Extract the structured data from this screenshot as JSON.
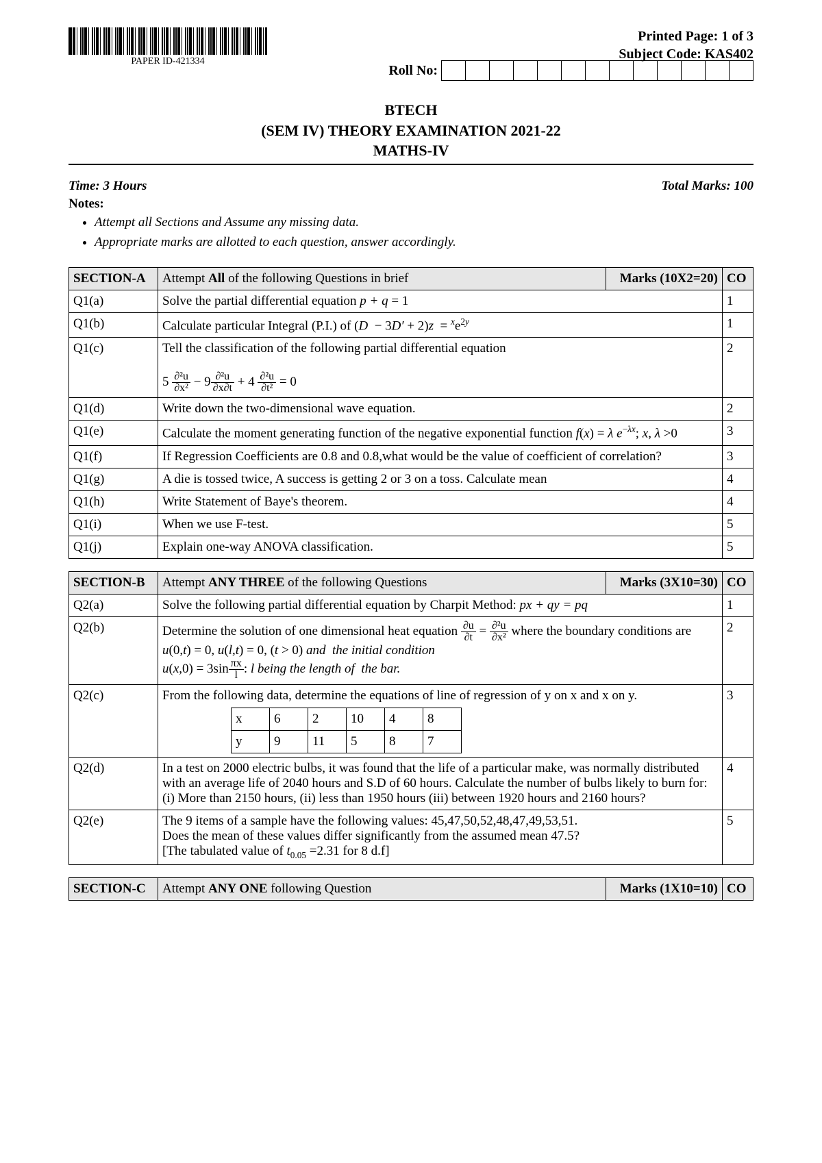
{
  "header": {
    "paper_id": "PAPER ID-421334",
    "printed_page": "Printed Page: 1 of 3",
    "subject_code": "Subject Code: KAS402",
    "roll_label": "Roll No:",
    "roll_box_count": 13,
    "exam_line1": "BTECH",
    "exam_line2": "(SEM IV) THEORY EXAMINATION 2021-22",
    "exam_line3": "MATHS-IV"
  },
  "meta": {
    "time": "Time: 3 Hours",
    "marks": "Total Marks: 100",
    "notes_label": "Notes:",
    "notes": [
      "Attempt all Sections and Assume any missing data.",
      "Appropriate marks are allotted to each question, answer accordingly."
    ]
  },
  "sectionA": {
    "title": "SECTION-A",
    "instruct_pre": "Attempt ",
    "instruct_bold": "All",
    "instruct_post": " of the following Questions in brief",
    "marks_label": "Marks (10X2=20)",
    "co_label": "CO",
    "rows": [
      {
        "q": "Q1(a)",
        "text": "Solve the partial differential equation  <span class='math'>p + q</span> = 1",
        "co": "1"
      },
      {
        "q": "Q1(b)",
        "text": "Calculate particular Integral (P.I.) of (<span class='math'>D</span> &nbsp;− 3<span class='math'>D′</span> + 2)<span class='math'>z</span>&nbsp; = <sup><span class='math'>x</span></sup>e<sup>2<span class='math'>y</span></sup>",
        "co": "1"
      },
      {
        "q": "Q1(c)",
        "text": "Tell the classification of the following partial differential equation<br><br>5 <span class='frac'><span class='n'>∂²u</span><span class='d'>∂x²</span></span> − 9<span class='frac'><span class='n'>∂²u</span><span class='d'>∂x∂t</span></span> + 4 <span class='frac'><span class='n'>∂²u</span><span class='d'>∂t²</span></span> = 0",
        "co": "2"
      },
      {
        "q": "Q1(d)",
        "text": "Write down the two-dimensional wave equation.",
        "co": "2"
      },
      {
        "q": "Q1(e)",
        "text": "Calculate the moment generating function of the negative exponential function <span class='math'>f</span>(<span class='math'>x</span>) = <span class='math'>λ e</span><sup>−<span class='math'>λx</span></sup>; <span class='math'>x</span>, <span class='math'>λ</span> &gt;0",
        "co": "3",
        "justify": true
      },
      {
        "q": "Q1(f)",
        "text": "If Regression Coefficients are 0.8 and 0.8,what would be the value of coefficient of correlation?",
        "co": "3"
      },
      {
        "q": "Q1(g)",
        "text": "A die is tossed twice, A success is getting 2 or 3 on a toss. Calculate mean",
        "co": "4"
      },
      {
        "q": "Q1(h)",
        "text": "Write Statement of Baye's theorem.",
        "co": "4"
      },
      {
        "q": "Q1(i)",
        "text": "When we use F-test.",
        "co": "5"
      },
      {
        "q": "Q1(j)",
        "text": "Explain one-way ANOVA classification.",
        "co": "5"
      }
    ]
  },
  "sectionB": {
    "title": "SECTION-B",
    "instruct_pre": "Attempt ",
    "instruct_bold": "ANY THREE",
    "instruct_post": " of the following Questions",
    "marks_label": "Marks (3X10=30)",
    "co_label": "CO",
    "rows": [
      {
        "q": "Q2(a)",
        "text": "Solve the  following  partial differential equation by Charpit Method: <span class='math'>px + qy = pq</span>",
        "co": "1"
      },
      {
        "q": "Q2(b)",
        "text": "Determine the solution of one dimensional heat equation <span class='frac'><span class='n'>∂u</span><span class='d'>∂t</span></span> = <span class='frac'><span class='n'>∂²u</span><span class='d'>∂x²</span></span> where the boundary conditions  are <span class='math'>u</span>(0,<span class='math'>t</span>) = 0, <span class='math'>u</span>(<span class='math'>l</span>,<span class='math'>t</span>) = 0, (<span class='math'>t</span> &gt; 0) <span class='math'>and &nbsp;the initial condition</span><br><span class='math'>u</span>(<span class='math'>x</span>,0) = 3sin<span class='frac'><span class='n'>πx</span><span class='d'>l</span></span>: <span class='math'>l being the length of &nbsp;the bar.</span>",
        "co": "2"
      },
      {
        "q": "Q2(c)",
        "text": "From the following data, determine the equations of line of regression of  y on x and x on y.",
        "co": "3",
        "table": {
          "rows": [
            [
              "x",
              "6",
              "2",
              "10",
              "4",
              "8"
            ],
            [
              "y",
              "9",
              "11",
              "5",
              "8",
              "7"
            ]
          ]
        }
      },
      {
        "q": "Q2(d)",
        "text": "In a test on 2000 electric bulbs, it was found that the life of a particular make, was normally distributed with an average life of 2040 hours and S.D of 60 hours. Calculate the number of bulbs likely to burn for:  (i) More than 2150 hours, (ii) less than 1950 hours (iii) between 1920 hours and  2160 hours?",
        "co": "4"
      },
      {
        "q": "Q2(e)",
        "text": "The 9 items of a sample have the following values: 45,47,50,52,48,47,49,53,51.<br>Does the mean of these values differ significantly from the assumed mean 47.5?<br>[The tabulated value of <span class='math'>t</span><sub>0.05</sub> =2.31 for 8 d.f]",
        "co": "5"
      }
    ]
  },
  "sectionC": {
    "title": "SECTION-C",
    "instruct_pre": "Attempt ",
    "instruct_bold": "ANY ONE",
    "instruct_post": " following Question",
    "marks_label": "Marks (1X10=10)",
    "co_label": "CO"
  },
  "colors": {
    "section_bg": "#e6e6e6",
    "border": "#000000",
    "text": "#000000",
    "page_bg": "#ffffff"
  }
}
